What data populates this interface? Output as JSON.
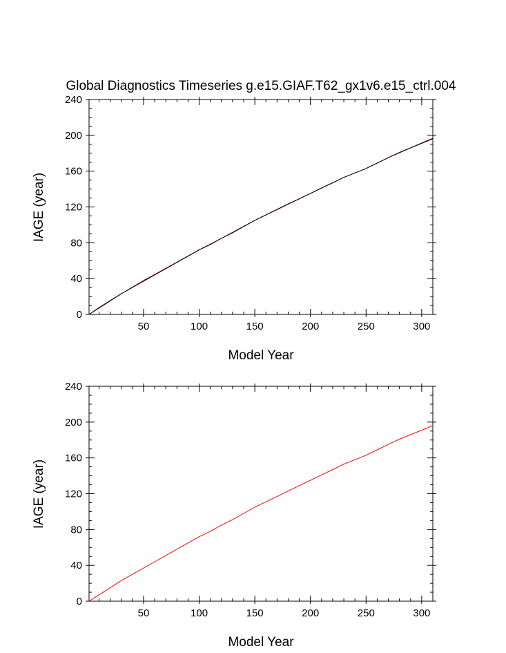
{
  "figure": {
    "title": "Global Diagnostics Timeseries g.e15.GIAF.T62_gx1v6.e15_ctrl.004"
  },
  "chart_data": [
    {
      "type": "line",
      "title": "Global Diagnostics Timeseries g.e15.GIAF.T62_gx1v6.e15_ctrl.004",
      "xlabel": "Model Year",
      "ylabel": "IAGE (year)",
      "xlim": [
        1,
        310
      ],
      "ylim": [
        0,
        240
      ],
      "xticks": [
        50,
        100,
        150,
        200,
        250,
        300
      ],
      "yticks": [
        0,
        40,
        80,
        120,
        160,
        200,
        240
      ],
      "grid": false,
      "series": [
        {
          "color": "#c00000",
          "x": [
            1,
            10,
            20,
            30,
            40,
            50,
            60,
            70,
            80,
            90,
            100,
            110,
            120,
            130,
            140,
            150,
            160,
            170,
            180,
            190,
            200,
            210,
            220,
            230,
            240,
            250,
            260,
            270,
            280,
            290,
            300,
            310
          ],
          "y": [
            0,
            7,
            15,
            23,
            30,
            37,
            44,
            51,
            58,
            65,
            72,
            78,
            85,
            91,
            98,
            105,
            111,
            117,
            123,
            129,
            135,
            141,
            147,
            153,
            158,
            163,
            169,
            175,
            181,
            186,
            191,
            196
          ]
        },
        {
          "color": "#000000",
          "x": [
            1,
            10,
            20,
            30,
            40,
            50,
            60,
            70,
            80,
            90,
            100,
            110,
            120,
            130,
            140,
            150,
            160,
            170,
            180,
            190,
            200,
            210,
            220,
            230,
            240,
            250,
            260,
            270,
            280,
            290,
            300,
            310
          ],
          "y": [
            0,
            7.6,
            15.5,
            23,
            30.5,
            37.8,
            44.5,
            51.5,
            58.3,
            65.3,
            72.2,
            78.5,
            85,
            91.6,
            98.3,
            105,
            111.2,
            117.4,
            123.4,
            129.2,
            135.2,
            141.2,
            147,
            153,
            158,
            163,
            169,
            175,
            180.6,
            186,
            191.4,
            196.6
          ]
        }
      ]
    },
    {
      "type": "line",
      "title": "",
      "xlabel": "Model Year",
      "ylabel": "IAGE (year)",
      "xlim": [
        1,
        310
      ],
      "ylim": [
        0,
        240
      ],
      "xticks": [
        50,
        100,
        150,
        200,
        250,
        300
      ],
      "yticks": [
        0,
        40,
        80,
        120,
        160,
        200,
        240
      ],
      "grid": false,
      "series": [
        {
          "color": "#ff0000",
          "x": [
            1,
            10,
            20,
            30,
            40,
            50,
            60,
            70,
            80,
            90,
            100,
            110,
            120,
            130,
            140,
            150,
            160,
            170,
            180,
            190,
            200,
            210,
            220,
            230,
            240,
            250,
            260,
            270,
            280,
            290,
            300,
            310
          ],
          "y": [
            0,
            7,
            15,
            23,
            30,
            37,
            44,
            51,
            58,
            65,
            72,
            78,
            85,
            91,
            98,
            105,
            111,
            117,
            123,
            129,
            135,
            141,
            147,
            153,
            158,
            163,
            169,
            175,
            181,
            186,
            191,
            196
          ]
        }
      ]
    }
  ]
}
